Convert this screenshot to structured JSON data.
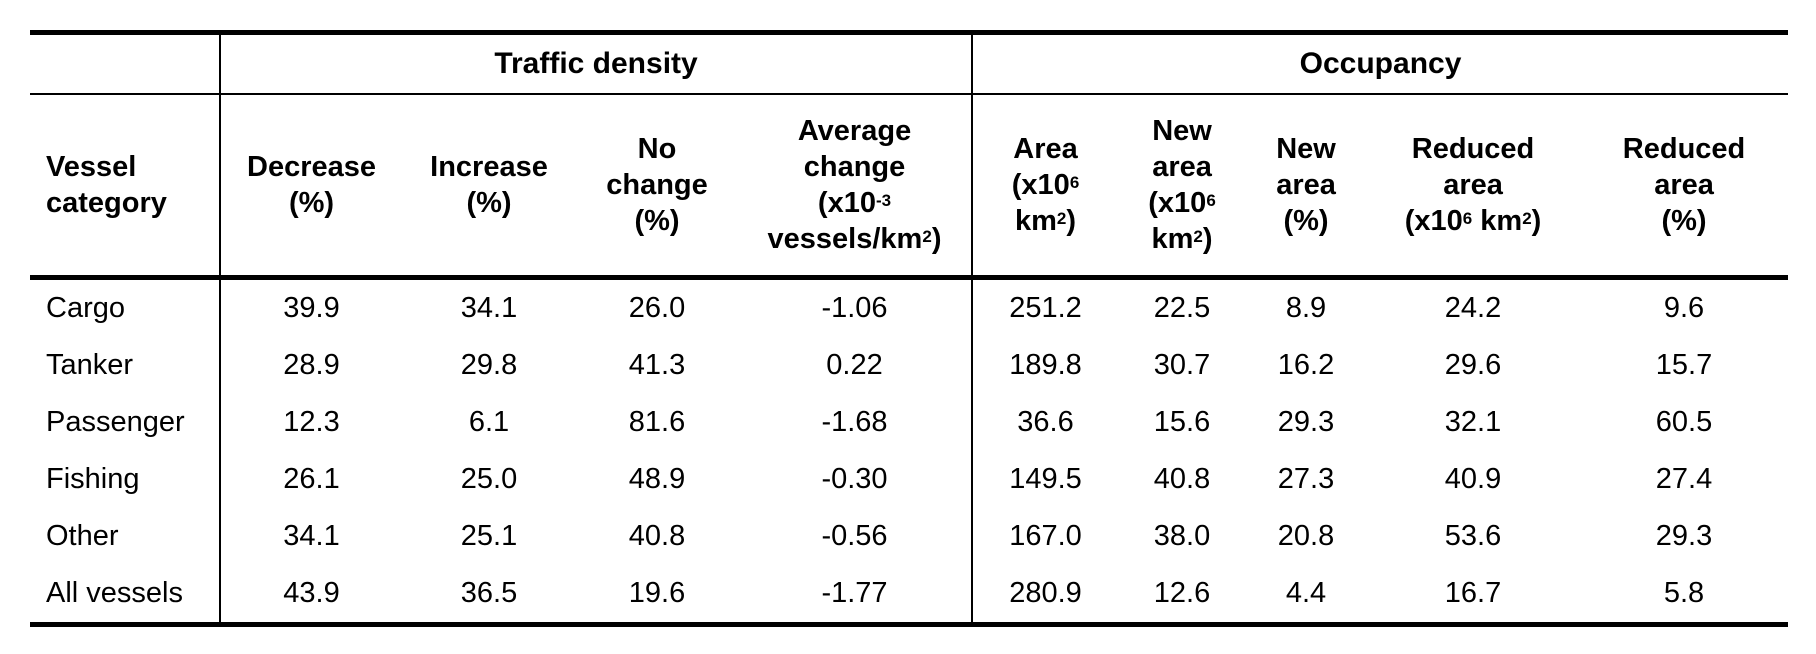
{
  "table": {
    "group_headers": {
      "traffic_density": "Traffic density",
      "occupancy": "Occupancy"
    },
    "columns": {
      "vessel_category": [
        "Vessel",
        "category"
      ],
      "decrease_pct": [
        "Decrease",
        "(%)"
      ],
      "increase_pct": [
        "Increase",
        "(%)"
      ],
      "no_change_pct": [
        "No",
        "change",
        "(%)"
      ],
      "average_change": {
        "l1": "Average",
        "l2": "change",
        "l3_a": "(x10",
        "l3_sup": "-3",
        "l4_a": "vessels/km",
        "l4_sup": "2",
        "l4_b": ")"
      },
      "area": {
        "l1": "Area",
        "l2_a": "(x10",
        "l2_sup": "6",
        "l3_a": "km",
        "l3_sup": "2",
        "l3_b": ")"
      },
      "new_area": {
        "l1": "New",
        "l2": "area",
        "l3_a": "(x10",
        "l3_sup": "6",
        "l4_a": "km",
        "l4_sup": "2",
        "l4_b": ")"
      },
      "new_area_pct": [
        "New",
        "area",
        "(%)"
      ],
      "reduced_area": {
        "l1": "Reduced",
        "l2": "area",
        "l3_a": "(x10",
        "l3_sup1": "6",
        "l3_b": " km",
        "l3_sup2": "2",
        "l3_c": ")"
      },
      "reduced_area_pct": [
        "Reduced",
        "area",
        "(%)"
      ]
    },
    "rows": [
      [
        "Cargo",
        "39.9",
        "34.1",
        "26.0",
        "-1.06",
        "251.2",
        "22.5",
        "8.9",
        "24.2",
        "9.6"
      ],
      [
        "Tanker",
        "28.9",
        "29.8",
        "41.3",
        "0.22",
        "189.8",
        "30.7",
        "16.2",
        "29.6",
        "15.7"
      ],
      [
        "Passenger",
        "12.3",
        "6.1",
        "81.6",
        "-1.68",
        "36.6",
        "15.6",
        "29.3",
        "32.1",
        "60.5"
      ],
      [
        "Fishing",
        "26.1",
        "25.0",
        "48.9",
        "-0.30",
        "149.5",
        "40.8",
        "27.3",
        "40.9",
        "27.4"
      ],
      [
        "Other",
        "34.1",
        "25.1",
        "40.8",
        "-0.56",
        "167.0",
        "38.0",
        "20.8",
        "53.6",
        "29.3"
      ],
      [
        "All vessels",
        "43.9",
        "36.5",
        "19.6",
        "-1.77",
        "280.9",
        "12.6",
        "4.4",
        "16.7",
        "5.8"
      ]
    ]
  }
}
